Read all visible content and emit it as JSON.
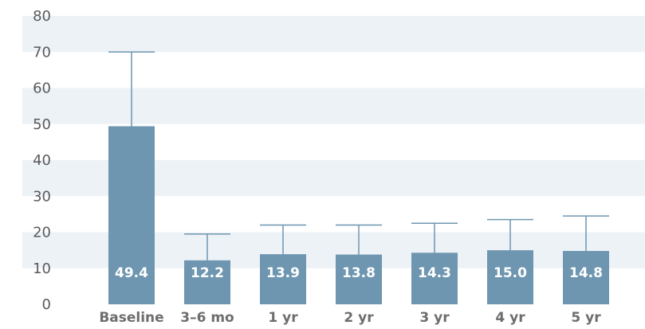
{
  "chart_data": {
    "type": "bar",
    "categories": [
      "Baseline",
      "3–6 mo",
      "1 yr",
      "2 yr",
      "3 yr",
      "4 yr",
      "5 yr"
    ],
    "series": [
      {
        "values": [
          49.4,
          12.2,
          13.9,
          13.8,
          14.3,
          15.0,
          14.8
        ],
        "error_upper": [
          70,
          19.5,
          22,
          22,
          22.5,
          23.5,
          24.5
        ]
      }
    ],
    "data_labels": [
      "49.4",
      "12.2",
      "13.9",
      "13.8",
      "14.3",
      "15.0",
      "14.8"
    ],
    "title": "",
    "xlabel": "",
    "ylabel": "",
    "ylim": [
      0,
      80
    ],
    "yticks": [
      0,
      10,
      20,
      30,
      40,
      50,
      60,
      70,
      80
    ],
    "grid": "alternating horizontal bands",
    "legend": "none",
    "colors": {
      "bar": "#6e96b0",
      "error_bar": "#6e96b0",
      "band": "#edf2f7",
      "tick_label": "#5a5a5a",
      "category_label": "#6d6d6d",
      "data_label": "#ffffff"
    }
  }
}
